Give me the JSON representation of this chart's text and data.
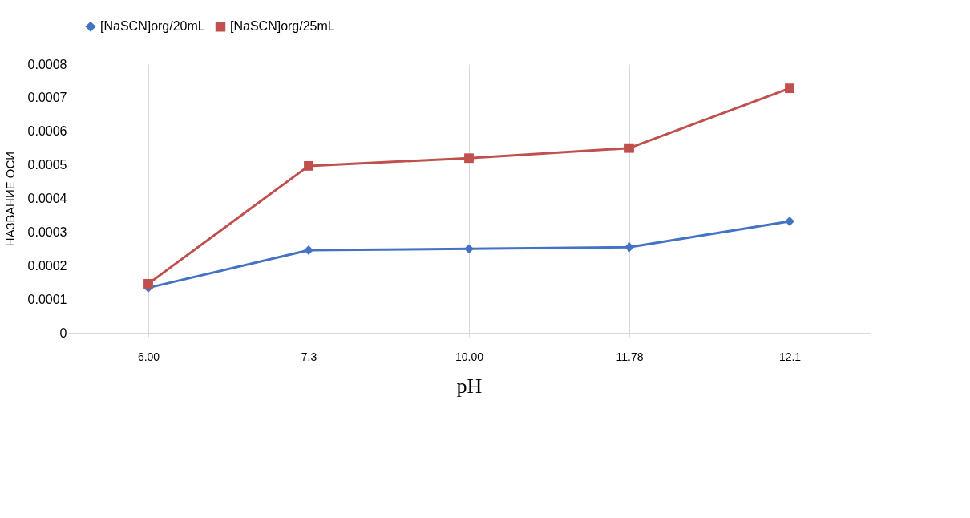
{
  "chart_data": {
    "type": "line",
    "xlabel": "pH",
    "ylabel": "НАЗВАНИЕ ОСИ",
    "categories": [
      "6.00",
      "7.3",
      "10.00",
      "11.78",
      "12.1"
    ],
    "series": [
      {
        "name": "[NaSCN]org/20mL",
        "color": "#4472c4",
        "marker": "diamond",
        "values": [
          0.000134,
          0.000246,
          0.00025,
          0.000255,
          0.000332
        ]
      },
      {
        "name": "[NaSCN]org/25mL",
        "color": "#c0504d",
        "marker": "square",
        "values": [
          0.000146,
          0.000497,
          0.00052,
          0.00055,
          0.000728
        ]
      }
    ],
    "ylim": [
      0,
      0.0008
    ],
    "yticks": [
      0,
      0.0001,
      0.0002,
      0.0003,
      0.0004,
      0.0005,
      0.0006,
      0.0007,
      0.0008
    ],
    "grid": "x",
    "legend": "top",
    "line_style": "solid"
  }
}
